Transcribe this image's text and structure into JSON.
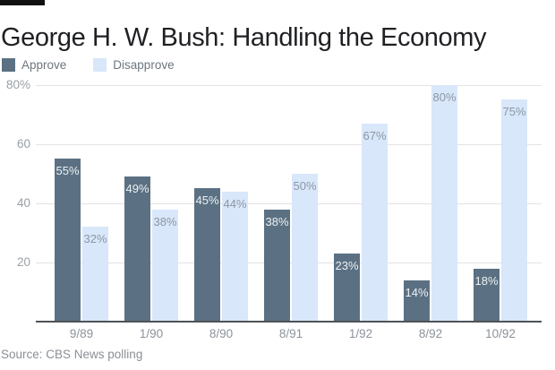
{
  "title": "George H. W. Bush: Handling the Economy",
  "source": "Source: CBS News polling",
  "chart_data": {
    "type": "bar",
    "title": "George H. W. Bush: Handling the Economy",
    "categories": [
      "9/89",
      "1/90",
      "8/90",
      "8/91",
      "1/92",
      "8/92",
      "10/92"
    ],
    "series": [
      {
        "name": "Approve",
        "values": [
          55,
          49,
          45,
          38,
          23,
          14,
          18
        ],
        "color": "#5b7183",
        "label_color": "#eef1f4"
      },
      {
        "name": "Disapprove",
        "values": [
          32,
          38,
          44,
          50,
          67,
          80,
          75
        ],
        "color": "#d8e7fa",
        "label_color": "#8d97a4"
      }
    ],
    "value_suffix": "%",
    "y_ticks": [
      20,
      40,
      60,
      80
    ],
    "y_tick_labels": [
      "20",
      "40",
      "60",
      "80%"
    ],
    "ylim": [
      0,
      80
    ],
    "grid": true,
    "legend_position": "top-left",
    "source": "Source: CBS News polling"
  },
  "colors": {
    "brand_bar": "#111111",
    "title": "#1f2023",
    "grid": "#e3e3e3",
    "axis_line": "#4e5357",
    "y_tick_label": "#9aa0a5",
    "x_tick_label": "#8c939b",
    "legend_text": "#6d767f",
    "source_text": "#8a9096",
    "background": "#ffffff"
  }
}
